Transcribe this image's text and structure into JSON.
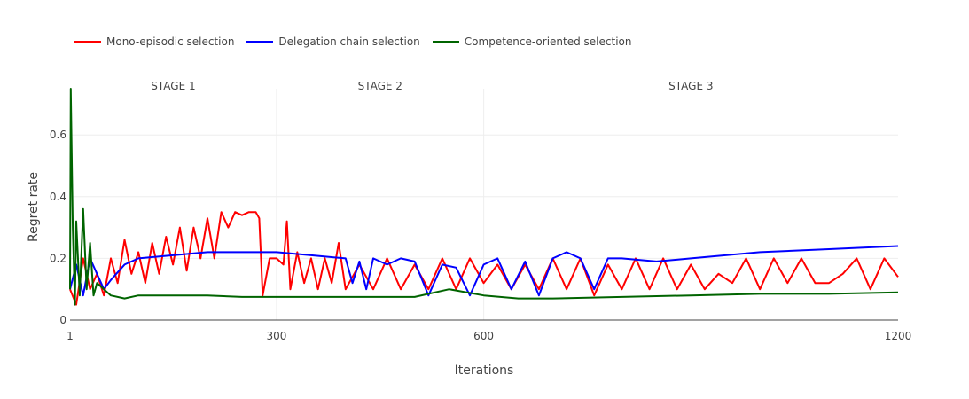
{
  "chart_data": {
    "type": "line",
    "title": "",
    "xlabel": "Iterations",
    "ylabel": "Regret rate",
    "xlim": [
      1,
      1200
    ],
    "ylim": [
      0,
      0.75
    ],
    "x_ticks": [
      "1",
      "300",
      "600",
      "1200"
    ],
    "y_ticks": [
      "0",
      "0.2",
      "0.4",
      "0.6"
    ],
    "stages": [
      "STAGE 1",
      "STAGE 2",
      "STAGE 3"
    ],
    "stage_boundaries": [
      300,
      600
    ],
    "grid": true,
    "legend_position": "top-left",
    "series": [
      {
        "name": "Mono-episodic selection",
        "color": "#ff0000",
        "points": [
          [
            1,
            0.1
          ],
          [
            10,
            0.05
          ],
          [
            20,
            0.2
          ],
          [
            30,
            0.1
          ],
          [
            40,
            0.15
          ],
          [
            50,
            0.08
          ],
          [
            60,
            0.2
          ],
          [
            70,
            0.12
          ],
          [
            80,
            0.26
          ],
          [
            90,
            0.15
          ],
          [
            100,
            0.22
          ],
          [
            110,
            0.12
          ],
          [
            120,
            0.25
          ],
          [
            130,
            0.15
          ],
          [
            140,
            0.27
          ],
          [
            150,
            0.18
          ],
          [
            160,
            0.3
          ],
          [
            170,
            0.16
          ],
          [
            180,
            0.3
          ],
          [
            190,
            0.2
          ],
          [
            200,
            0.33
          ],
          [
            210,
            0.2
          ],
          [
            220,
            0.35
          ],
          [
            230,
            0.3
          ],
          [
            240,
            0.35
          ],
          [
            250,
            0.34
          ],
          [
            260,
            0.35
          ],
          [
            270,
            0.35
          ],
          [
            275,
            0.33
          ],
          [
            280,
            0.08
          ],
          [
            290,
            0.2
          ],
          [
            300,
            0.2
          ],
          [
            310,
            0.18
          ],
          [
            315,
            0.32
          ],
          [
            320,
            0.1
          ],
          [
            330,
            0.22
          ],
          [
            340,
            0.12
          ],
          [
            350,
            0.2
          ],
          [
            360,
            0.1
          ],
          [
            370,
            0.2
          ],
          [
            380,
            0.12
          ],
          [
            390,
            0.25
          ],
          [
            400,
            0.1
          ],
          [
            420,
            0.18
          ],
          [
            440,
            0.1
          ],
          [
            460,
            0.2
          ],
          [
            480,
            0.1
          ],
          [
            500,
            0.18
          ],
          [
            520,
            0.1
          ],
          [
            540,
            0.2
          ],
          [
            560,
            0.1
          ],
          [
            580,
            0.2
          ],
          [
            600,
            0.12
          ],
          [
            620,
            0.18
          ],
          [
            640,
            0.1
          ],
          [
            660,
            0.18
          ],
          [
            680,
            0.1
          ],
          [
            700,
            0.2
          ],
          [
            720,
            0.1
          ],
          [
            740,
            0.2
          ],
          [
            760,
            0.08
          ],
          [
            780,
            0.18
          ],
          [
            800,
            0.1
          ],
          [
            820,
            0.2
          ],
          [
            840,
            0.1
          ],
          [
            860,
            0.2
          ],
          [
            880,
            0.1
          ],
          [
            900,
            0.18
          ],
          [
            920,
            0.1
          ],
          [
            940,
            0.15
          ],
          [
            960,
            0.12
          ],
          [
            980,
            0.2
          ],
          [
            1000,
            0.1
          ],
          [
            1020,
            0.2
          ],
          [
            1040,
            0.12
          ],
          [
            1060,
            0.2
          ],
          [
            1080,
            0.12
          ],
          [
            1100,
            0.12
          ],
          [
            1120,
            0.15
          ],
          [
            1140,
            0.2
          ],
          [
            1160,
            0.1
          ],
          [
            1180,
            0.2
          ],
          [
            1200,
            0.14
          ]
        ]
      },
      {
        "name": "Delegation chain selection",
        "color": "#0000ff",
        "points": [
          [
            1,
            0.1
          ],
          [
            10,
            0.18
          ],
          [
            20,
            0.08
          ],
          [
            30,
            0.2
          ],
          [
            40,
            0.15
          ],
          [
            50,
            0.1
          ],
          [
            60,
            0.13
          ],
          [
            80,
            0.18
          ],
          [
            100,
            0.2
          ],
          [
            150,
            0.21
          ],
          [
            200,
            0.22
          ],
          [
            250,
            0.22
          ],
          [
            300,
            0.22
          ],
          [
            350,
            0.21
          ],
          [
            400,
            0.2
          ],
          [
            410,
            0.12
          ],
          [
            420,
            0.19
          ],
          [
            430,
            0.1
          ],
          [
            440,
            0.2
          ],
          [
            460,
            0.18
          ],
          [
            480,
            0.2
          ],
          [
            500,
            0.19
          ],
          [
            520,
            0.08
          ],
          [
            540,
            0.18
          ],
          [
            560,
            0.17
          ],
          [
            580,
            0.08
          ],
          [
            600,
            0.18
          ],
          [
            620,
            0.2
          ],
          [
            640,
            0.1
          ],
          [
            660,
            0.19
          ],
          [
            680,
            0.08
          ],
          [
            700,
            0.2
          ],
          [
            720,
            0.22
          ],
          [
            740,
            0.2
          ],
          [
            760,
            0.1
          ],
          [
            780,
            0.2
          ],
          [
            800,
            0.2
          ],
          [
            850,
            0.19
          ],
          [
            900,
            0.2
          ],
          [
            950,
            0.21
          ],
          [
            1000,
            0.22
          ],
          [
            1100,
            0.23
          ],
          [
            1200,
            0.24
          ]
        ]
      },
      {
        "name": "Competence-oriented selection",
        "color": "#006400",
        "points": [
          [
            1,
            0.1
          ],
          [
            2,
            0.75
          ],
          [
            5,
            0.3
          ],
          [
            8,
            0.05
          ],
          [
            10,
            0.32
          ],
          [
            15,
            0.08
          ],
          [
            20,
            0.36
          ],
          [
            25,
            0.1
          ],
          [
            30,
            0.25
          ],
          [
            35,
            0.08
          ],
          [
            40,
            0.12
          ],
          [
            50,
            0.1
          ],
          [
            60,
            0.08
          ],
          [
            80,
            0.07
          ],
          [
            100,
            0.08
          ],
          [
            150,
            0.08
          ],
          [
            200,
            0.08
          ],
          [
            250,
            0.075
          ],
          [
            300,
            0.075
          ],
          [
            400,
            0.075
          ],
          [
            500,
            0.075
          ],
          [
            550,
            0.1
          ],
          [
            600,
            0.08
          ],
          [
            650,
            0.07
          ],
          [
            700,
            0.07
          ],
          [
            800,
            0.075
          ],
          [
            900,
            0.08
          ],
          [
            1000,
            0.085
          ],
          [
            1100,
            0.085
          ],
          [
            1200,
            0.09
          ]
        ]
      }
    ]
  }
}
